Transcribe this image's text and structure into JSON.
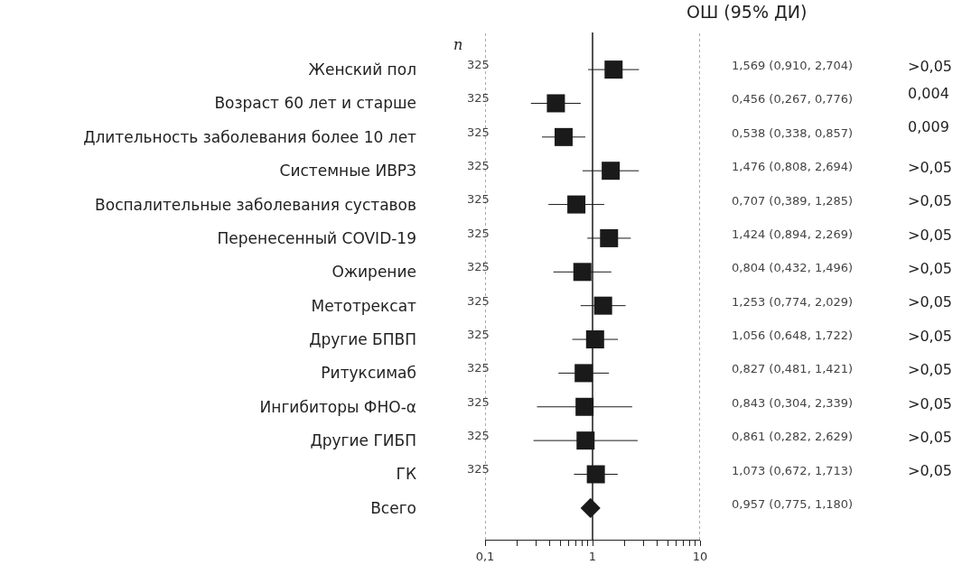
{
  "chart_data": {
    "type": "scatter",
    "orientation": "horizontal",
    "log": "x",
    "grid": false,
    "tick_labels": "x",
    "categories": [
      "Женский пол",
      "Возраст 60 лет и старше",
      "Длительность заболевания более 10 лет",
      "Системные ИВРЗ",
      "Воспалительные заболевания суставов",
      "Перенесенный COVID-19",
      "Ожирение",
      "Метотрексат",
      "Другие БПВП",
      "Ритуксимаб",
      "Ингибиторы ФНО-α",
      "Другие ГИБП",
      "ГК",
      "Всего"
    ],
    "series": [
      {
        "color": "#1a1a1a",
        "marker": "square",
        "values": [
          1.569,
          0.456,
          0.538,
          1.476,
          0.707,
          1.424,
          0.804,
          1.253,
          1.056,
          0.827,
          0.843,
          0.861,
          1.073,
          null
        ],
        "errors": [
          [
            0.91,
            2.704
          ],
          [
            0.267,
            0.776
          ],
          [
            0.338,
            0.857
          ],
          [
            0.808,
            2.694
          ],
          [
            0.389,
            1.285
          ],
          [
            0.894,
            2.269
          ],
          [
            0.432,
            1.496
          ],
          [
            0.774,
            2.029
          ],
          [
            0.648,
            1.722
          ],
          [
            0.481,
            1.421
          ],
          [
            0.304,
            2.339
          ],
          [
            0.282,
            2.629
          ],
          [
            0.672,
            1.713
          ],
          null
        ],
        "value_labels": [
          "1,569 (0,910, 2,704)",
          "0,456 (0,267, 0,776)",
          "0,538 (0,338, 0,857)",
          "1,476 (0,808, 2,694)",
          "0,707 (0,389, 1,285)",
          "1,424 (0,894, 2,269)",
          "0,804 (0,432, 1,496)",
          "1,253 (0,774, 2,029)",
          "1,056 (0,648, 1,722)",
          "0,827 (0,481, 1,421)",
          "0,843 (0,304, 2,339)",
          "0,861 (0,282, 2,629)",
          "1,073 (0,672, 1,713)",
          null
        ]
      },
      {
        "color": "#1a1a1a",
        "marker": "diamond",
        "values": [
          null,
          null,
          null,
          null,
          null,
          null,
          null,
          null,
          null,
          null,
          null,
          null,
          null,
          0.957
        ]
      }
    ],
    "xlim": [
      0.1,
      10
    ],
    "xticks": [
      {
        "value": 0.1,
        "label": "0,1"
      },
      {
        "value": 0.2,
        "label": null
      },
      {
        "value": 0.3,
        "label": null
      },
      {
        "value": 0.4,
        "label": null
      },
      {
        "value": 0.5,
        "label": null
      },
      {
        "value": 0.6,
        "label": null
      },
      {
        "value": 0.7,
        "label": null
      },
      {
        "value": 0.8,
        "label": null
      },
      {
        "value": 0.9,
        "label": null
      },
      1,
      {
        "value": 2,
        "label": null
      },
      {
        "value": 3,
        "label": null
      },
      {
        "value": 4,
        "label": null
      },
      {
        "value": 5,
        "label": null
      },
      {
        "value": 6,
        "label": null
      },
      {
        "value": 7,
        "label": null
      },
      {
        "value": 8,
        "label": null
      },
      {
        "value": 9,
        "label": null
      },
      10
    ],
    "ref_lines": [
      {
        "axis": "x",
        "value": 1,
        "line_style": "solid",
        "color": "#1a1a1a"
      },
      {
        "axis": "x",
        "value": 0.1,
        "line_style": "dotted",
        "color": "#555555"
      },
      {
        "axis": "x",
        "value": 10,
        "line_style": "dotted",
        "color": "#555555"
      }
    ],
    "annotations": [
      "n",
      "ОШ (95% ДИ)",
      "325",
      "325",
      "325",
      "325",
      "325",
      "325",
      "325",
      "325",
      "325",
      "325",
      "325",
      "325",
      "325",
      ">0,05",
      "0,004",
      "0,009",
      ">0,05",
      ">0,05",
      ">0,05",
      ">0,05",
      ">0,05",
      ">0,05",
      ">0,05",
      ">0,05",
      ">0,05",
      ">0,05",
      "0,957 (0,775, 1,180)"
    ]
  }
}
